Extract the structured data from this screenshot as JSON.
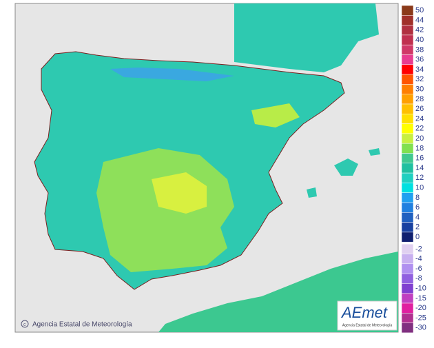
{
  "map": {
    "credit": "Agencia Estatal de Meteorología",
    "logo": {
      "name": "AEmet",
      "subtitle": "Agencia Estatal de Meteorología"
    },
    "legend": [
      {
        "value": 50,
        "color": "#8b3a1a"
      },
      {
        "value": 44,
        "color": "#a0302a"
      },
      {
        "value": 42,
        "color": "#b03040"
      },
      {
        "value": 40,
        "color": "#c03050"
      },
      {
        "value": 38,
        "color": "#d03868"
      },
      {
        "value": 36,
        "color": "#e83c90"
      },
      {
        "value": 34,
        "color": "#ff0000"
      },
      {
        "value": 32,
        "color": "#ff5500"
      },
      {
        "value": 30,
        "color": "#ff7f00"
      },
      {
        "value": 28,
        "color": "#ffa000"
      },
      {
        "value": 26,
        "color": "#ffc000"
      },
      {
        "value": 24,
        "color": "#ffe000"
      },
      {
        "value": 22,
        "color": "#ffff00"
      },
      {
        "value": 20,
        "color": "#c8f040"
      },
      {
        "value": 18,
        "color": "#80e050"
      },
      {
        "value": 16,
        "color": "#40c890"
      },
      {
        "value": 14,
        "color": "#20c0a0"
      },
      {
        "value": 12,
        "color": "#20d0c0"
      },
      {
        "value": 10,
        "color": "#00e0e0"
      },
      {
        "value": 8,
        "color": "#20a0f0"
      },
      {
        "value": 6,
        "color": "#2080e0"
      },
      {
        "value": 4,
        "color": "#2060c0"
      },
      {
        "value": 2,
        "color": "#1840a0"
      },
      {
        "value": 0,
        "color": "#102070"
      },
      {
        "value": -2,
        "color": "#e0d0f0"
      },
      {
        "value": -4,
        "color": "#c8b0f0"
      },
      {
        "value": -6,
        "color": "#b090f0"
      },
      {
        "value": -8,
        "color": "#9060e0"
      },
      {
        "value": -10,
        "color": "#8040d0"
      },
      {
        "value": -15,
        "color": "#c040c0"
      },
      {
        "value": -20,
        "color": "#e020a0"
      },
      {
        "value": -25,
        "color": "#b03090"
      },
      {
        "value": -30,
        "color": "#803080"
      }
    ]
  }
}
